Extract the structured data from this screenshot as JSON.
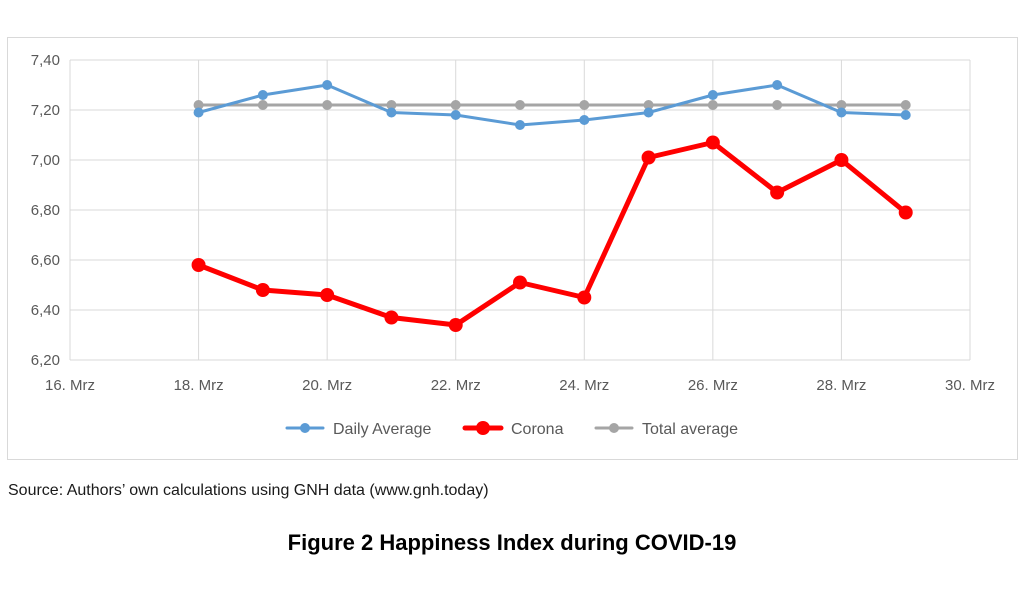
{
  "chart_data": {
    "type": "line",
    "x": [
      "18. Mrz",
      "19. Mrz",
      "20. Mrz",
      "21. Mrz",
      "22. Mrz",
      "23. Mrz",
      "24. Mrz",
      "25. Mrz",
      "26. Mrz",
      "27. Mrz",
      "28. Mrz",
      "29. Mrz"
    ],
    "x_ticks": [
      "16. Mrz",
      "18. Mrz",
      "20. Mrz",
      "22. Mrz",
      "24. Mrz",
      "26. Mrz",
      "28. Mrz",
      "30. Mrz"
    ],
    "xlim": [
      "16. Mrz",
      "30. Mrz"
    ],
    "y_ticks": [
      "6,20",
      "6,40",
      "6,60",
      "6,80",
      "7,00",
      "7,20",
      "7,40"
    ],
    "ylim": [
      6.2,
      7.4
    ],
    "grid": true,
    "legend_position": "bottom",
    "series": [
      {
        "name": "Daily Average",
        "color": "#5b9bd5",
        "values": [
          7.19,
          7.26,
          7.3,
          7.19,
          7.18,
          7.14,
          7.16,
          7.19,
          7.26,
          7.3,
          7.19,
          7.18
        ]
      },
      {
        "name": "Corona",
        "color": "#ff0000",
        "values": [
          6.58,
          6.48,
          6.46,
          6.37,
          6.34,
          6.51,
          6.45,
          7.01,
          7.07,
          6.87,
          7.0,
          6.79
        ]
      },
      {
        "name": "Total average",
        "color": "#a5a5a5",
        "values": [
          7.22,
          7.22,
          7.22,
          7.22,
          7.22,
          7.22,
          7.22,
          7.22,
          7.22,
          7.22,
          7.22,
          7.22
        ]
      }
    ]
  },
  "source_text": "Source: Authors’ own calculations using GNH data (www.gnh.today)",
  "figure_caption": "Figure 2 Happiness Index during COVID-19"
}
